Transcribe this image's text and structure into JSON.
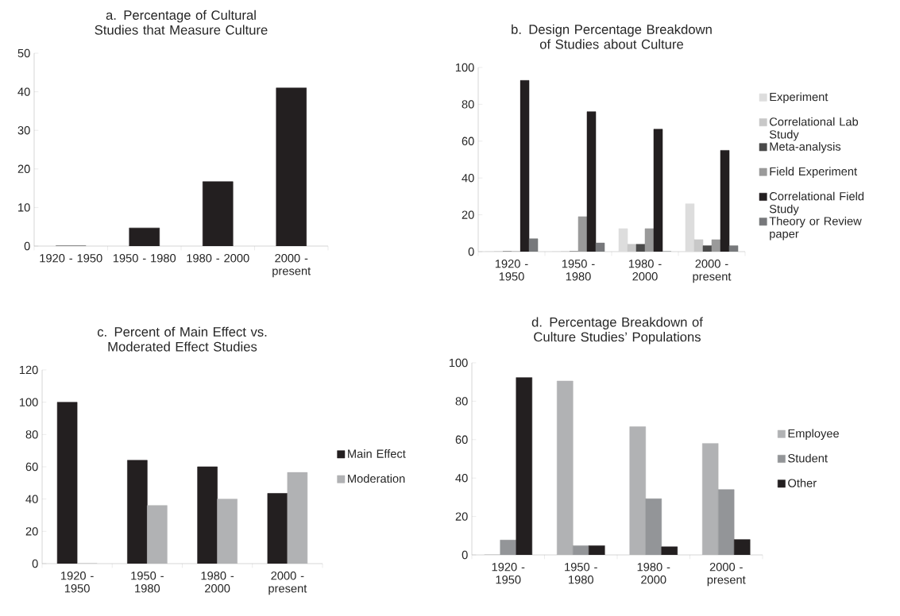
{
  "chart_data": [
    {
      "type": "bar",
      "title": "a. Percentage of Cultural Studies that Measure Culture",
      "categories": [
        "1920 - 1950",
        "1950 - 1980",
        "1980 - 2000",
        "2000 - present"
      ],
      "values": [
        0,
        4.7,
        16.7,
        41
      ],
      "color": "#231f20",
      "ylim": [
        0,
        50
      ],
      "yticks": [
        0,
        10,
        20,
        30,
        40,
        50
      ],
      "grid": false,
      "legend": false
    },
    {
      "type": "bar",
      "title": "b. Design Percentage Breakdown of Studies about Culture",
      "categories": [
        "1920 - 1950",
        "1950 - 1980",
        "1980 - 2000",
        "2000 - present"
      ],
      "ylim": [
        0,
        100
      ],
      "yticks": [
        0,
        20,
        40,
        60,
        80,
        100
      ],
      "grid": false,
      "legend": "right",
      "series": [
        {
          "name": "Experiment",
          "color": "#dddddd",
          "values": [
            0,
            0,
            12.5,
            26
          ]
        },
        {
          "name": "Correlational Lab Study",
          "color": "#c8c8c8",
          "values": [
            0,
            0,
            4,
            6.5
          ]
        },
        {
          "name": "Meta-analysis",
          "color": "#4a4a4a",
          "values": [
            0,
            0,
            4,
            3.2
          ]
        },
        {
          "name": "Field Experiment",
          "color": "#9a9a9a",
          "values": [
            0,
            19,
            12.5,
            6.5
          ]
        },
        {
          "name": "Correlational Field Study",
          "color": "#231f20",
          "values": [
            93,
            76,
            66.5,
            55
          ]
        },
        {
          "name": "Theory or Review paper",
          "color": "#77787b",
          "values": [
            7,
            4.7,
            0,
            3.2
          ]
        }
      ]
    },
    {
      "type": "bar",
      "title": "c. Percent of Main Effect vs. Moderated Effect Studies",
      "categories": [
        "1920 - 1950",
        "1950 - 1980",
        "1980 - 2000",
        "2000 - present"
      ],
      "ylim": [
        0,
        120
      ],
      "yticks": [
        0,
        20,
        40,
        60,
        80,
        100,
        120
      ],
      "grid": false,
      "legend": "right",
      "series": [
        {
          "name": "Main Effect",
          "color": "#231f20",
          "values": [
            100,
            64,
            60,
            43.5
          ]
        },
        {
          "name": "Moderation",
          "color": "#b1b2b4",
          "values": [
            0,
            36,
            40,
            56.5
          ]
        }
      ]
    },
    {
      "type": "bar",
      "title": "d. Percentage Breakdown of Culture Studies’ Populations",
      "categories": [
        "1920 - 1950",
        "1950 - 1980",
        "1980 - 2000",
        "2000 - present"
      ],
      "ylim": [
        0,
        100
      ],
      "yticks": [
        0,
        20,
        40,
        60,
        80,
        100
      ],
      "grid": false,
      "legend": "right",
      "series": [
        {
          "name": "Employee",
          "color": "#b1b2b4",
          "values": [
            0,
            90.5,
            66.7,
            58
          ]
        },
        {
          "name": "Student",
          "color": "#939598",
          "values": [
            7.7,
            4.8,
            29.2,
            34
          ]
        },
        {
          "name": "Other",
          "color": "#231f20",
          "values": [
            92.3,
            4.8,
            4.2,
            8
          ]
        }
      ]
    }
  ]
}
